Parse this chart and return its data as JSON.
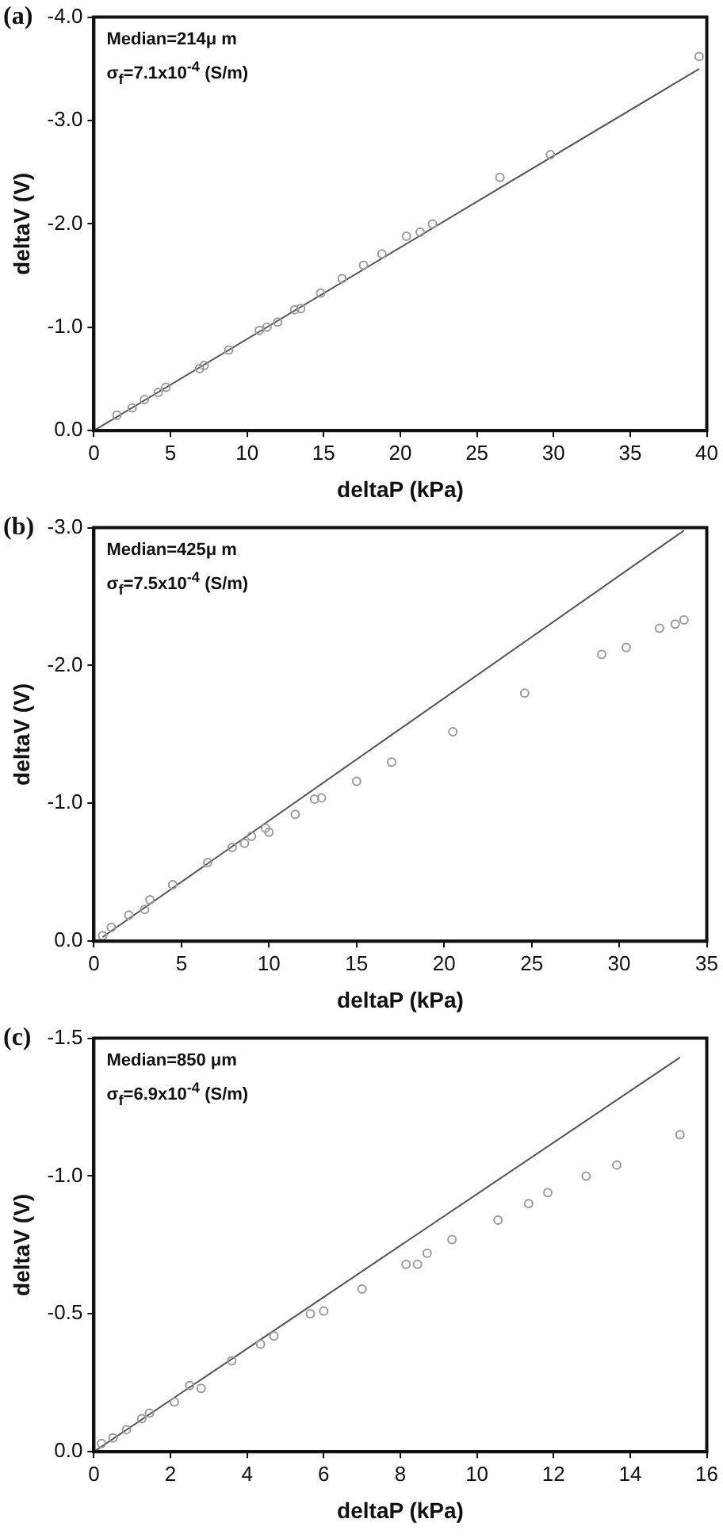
{
  "chart_data": [
    {
      "type": "scatter",
      "title": "(a)",
      "xlabel": "deltaP (kPa)",
      "ylabel": "deltaV (V)",
      "annotations": [
        "Median=214μ m",
        "σ$_{f}$=7.1x10$^{-4}$ (S/m)"
      ],
      "xlim": [
        0,
        40
      ],
      "xticks": [
        0,
        5,
        10,
        15,
        20,
        25,
        30,
        35,
        40
      ],
      "ylim": [
        0,
        -4
      ],
      "yticks": [
        {
          "value": 0,
          "label": "0.0"
        },
        {
          "value": -1,
          "label": "-1.0"
        },
        {
          "value": -2,
          "label": "-2.0"
        },
        {
          "value": -3,
          "label": "-3.0"
        },
        {
          "value": -4,
          "label": "-4.0"
        }
      ],
      "series": [
        {
          "type": "scatter",
          "marker": "circle",
          "color": "#9a9a9a",
          "x": [
            1.5,
            2.5,
            3.3,
            4.2,
            4.7,
            6.9,
            7.2,
            8.8,
            10.8,
            11.3,
            12,
            13.1,
            13.5,
            14.8,
            16.2,
            17.6,
            18.8,
            20.4,
            21.3,
            22.1,
            26.5,
            29.8,
            39.5
          ],
          "values": [
            -0.15,
            -0.22,
            -0.3,
            -0.37,
            -0.42,
            -0.6,
            -0.63,
            -0.78,
            -0.97,
            -1.0,
            -1.05,
            -1.17,
            -1.18,
            -1.33,
            -1.47,
            -1.6,
            -1.71,
            -1.88,
            -1.92,
            -2.0,
            -2.45,
            -2.67,
            -3.62
          ]
        },
        {
          "type": "line",
          "marker": "none",
          "color": "#555555",
          "x": [
            0,
            39.5
          ],
          "values": [
            0,
            -3.5
          ]
        }
      ]
    },
    {
      "type": "scatter",
      "title": "(b)",
      "xlabel": "deltaP (kPa)",
      "ylabel": "deltaV (V)",
      "annotations": [
        "Median=425μ m",
        "σ$_{f}$=7.5x10$^{-4}$ (S/m)"
      ],
      "xlim": [
        0,
        35
      ],
      "xticks": [
        0,
        5,
        10,
        15,
        20,
        25,
        30,
        35
      ],
      "ylim": [
        0,
        -3
      ],
      "yticks": [
        {
          "value": 0,
          "label": "0.0"
        },
        {
          "value": -1,
          "label": "-1.0"
        },
        {
          "value": -2,
          "label": "-2.0"
        },
        {
          "value": -3,
          "label": "-3.0"
        }
      ],
      "series": [
        {
          "type": "scatter",
          "marker": "circle",
          "color": "#9a9a9a",
          "x": [
            0.5,
            1,
            2,
            2.9,
            3.2,
            4.5,
            6.5,
            7.9,
            8.6,
            9,
            9.8,
            10,
            11.5,
            12.6,
            13,
            15,
            17,
            20.5,
            24.6,
            29,
            30.4,
            32.3,
            33.2,
            33.7
          ],
          "values": [
            -0.04,
            -0.1,
            -0.19,
            -0.23,
            -0.3,
            -0.41,
            -0.57,
            -0.68,
            -0.71,
            -0.76,
            -0.82,
            -0.79,
            -0.92,
            -1.03,
            -1.04,
            -1.16,
            -1.3,
            -1.52,
            -1.8,
            -2.08,
            -2.13,
            -2.27,
            -2.3,
            -2.33
          ]
        },
        {
          "type": "line",
          "marker": "none",
          "color": "#555555",
          "x": [
            0.5,
            33.7
          ],
          "values": [
            -0.03,
            -2.98
          ]
        }
      ]
    },
    {
      "type": "scatter",
      "title": "(c)",
      "xlabel": "deltaP (kPa)",
      "ylabel": "deltaV (V)",
      "annotations": [
        "Median=850 μm",
        "σ$_{f}$=6.9x10$^{-4}$ (S/m)"
      ],
      "xlim": [
        0,
        16
      ],
      "xticks": [
        0,
        2,
        4,
        6,
        8,
        10,
        12,
        14,
        16
      ],
      "ylim": [
        0,
        -1.5
      ],
      "yticks": [
        {
          "value": 0,
          "label": "0.0"
        },
        {
          "value": -0.5,
          "label": "-0.5"
        },
        {
          "value": -1,
          "label": "-1.0"
        },
        {
          "value": -1.5,
          "label": "-1.5"
        }
      ],
      "series": [
        {
          "type": "scatter",
          "marker": "circle",
          "color": "#9a9a9a",
          "x": [
            0.2,
            0.5,
            0.85,
            1.25,
            1.45,
            2.1,
            2.5,
            2.8,
            3.6,
            4.35,
            4.7,
            5.65,
            6,
            7,
            8.15,
            8.45,
            8.7,
            9.35,
            10.55,
            11.35,
            11.85,
            12.85,
            13.65,
            15.3
          ],
          "values": [
            -0.03,
            -0.05,
            -0.08,
            -0.12,
            -0.14,
            -0.18,
            -0.24,
            -0.23,
            -0.33,
            -0.39,
            -0.42,
            -0.5,
            -0.51,
            -0.59,
            -0.68,
            -0.68,
            -0.72,
            -0.77,
            -0.84,
            -0.9,
            -0.94,
            -1.0,
            -1.04,
            -1.15
          ]
        },
        {
          "type": "line",
          "marker": "none",
          "color": "#555555",
          "x": [
            0,
            15.3
          ],
          "values": [
            0,
            -1.43
          ]
        }
      ]
    }
  ]
}
